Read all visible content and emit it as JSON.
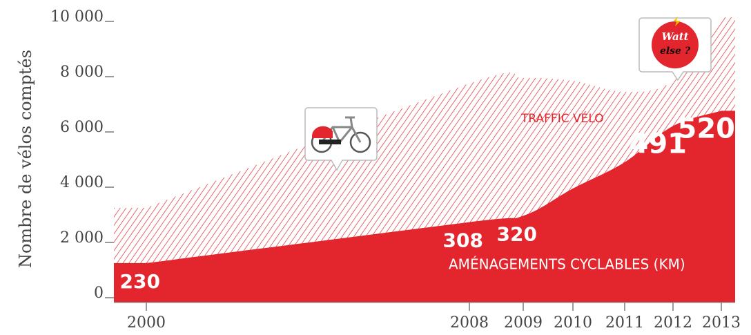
{
  "chart_data": {
    "type": "area",
    "ylabel": "Nombre de vélos comptés",
    "categories": [
      "2000",
      "2008",
      "2009",
      "2010",
      "2011",
      "2012",
      "2013"
    ],
    "ylim": [
      0,
      10000
    ],
    "yticks": [
      0,
      {
        "value": 2000,
        "label": "2 000"
      },
      {
        "value": 4000,
        "label": "4 000"
      },
      {
        "value": 6000,
        "label": "6 000"
      },
      {
        "value": 8000,
        "label": "8 000"
      },
      {
        "value": 10000,
        "label": "10 000"
      }
    ],
    "y2lim": [
      172,
      698
    ],
    "series": [
      {
        "name": "TRAFFIC VÉLO",
        "color": "#e3262d",
        "style": "hatched",
        "values": [
          3100,
          7600,
          7800,
          7700,
          7300,
          7700,
          10000
        ]
      },
      {
        "name": "AMÉNAGEMENTS CYCLABLES (KM)",
        "color": "#e3262d",
        "style": "solid",
        "axis": "y2",
        "values": [
          230,
          308,
          320,
          372,
          422,
          491,
          520
        ],
        "value_labels": [
          "230",
          "308",
          "320",
          null,
          null,
          "491",
          "520"
        ]
      }
    ],
    "annotations": [
      "Watt",
      "else ?"
    ]
  }
}
